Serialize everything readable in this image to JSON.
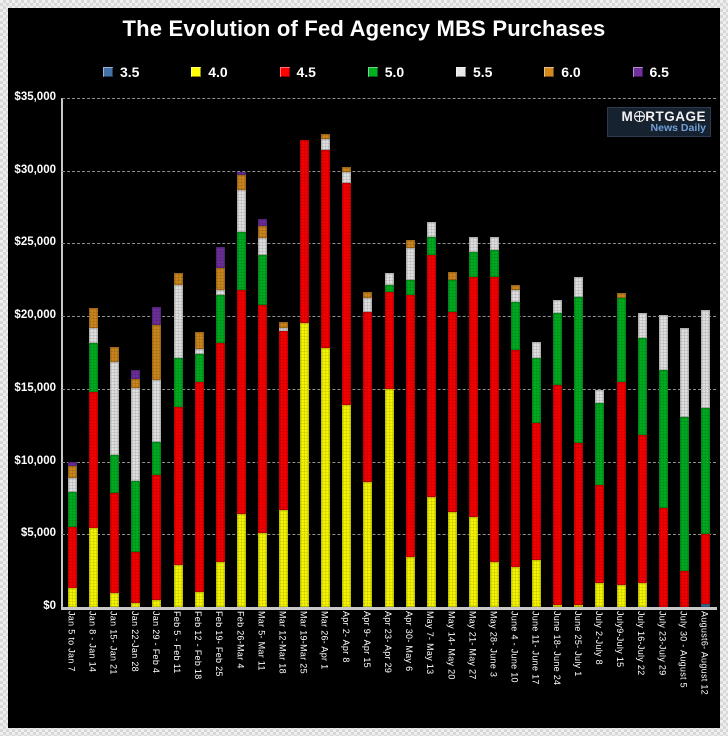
{
  "title": "The Evolution of Fed Agency MBS Purchases",
  "logo": {
    "name_left": "M",
    "name_right": "RTGAGE",
    "subtitle": "News Daily"
  },
  "axis": {
    "y_ticks": [
      "$35,000",
      "$30,000",
      "$25,000",
      "$20,000",
      "$15,000",
      "$10,000",
      "$5,000",
      "$0"
    ]
  },
  "chart_data": {
    "type": "bar",
    "stacked": true,
    "title": "The Evolution of Fed Agency MBS Purchases",
    "xlabel": "",
    "ylabel": "",
    "ylim": [
      0,
      35000
    ],
    "gridline_interval": 5000,
    "grid": true,
    "legend_position": "top",
    "background": "#000000",
    "categories": [
      "Jan 5 to Jan 7",
      "Jan 8 - Jan 14",
      "Jan 15- Jan 21",
      "Jan 22-Jan 28",
      "Jan 29 - Feb 4",
      "Feb 5 - Feb 11",
      "Feb 12 - Feb 18",
      "Feb 19- Feb 25",
      "Feb 26-Mar 4",
      "Mar 5- Mar 11",
      "Mar 12-Mar 18",
      "Mar 19-Mar 25",
      "Mar 26- Apr 1",
      "Apr 2- Apr 8",
      "Apr 9- Apr 15",
      "Apr 23- Apr 29",
      "Apr 30- May 6",
      "May 7- May 13",
      "May 14- May 20",
      "May 21- May 27",
      "May 28- June 3",
      "June 4 - June 10",
      "June 11- June 17",
      "June 18- June 24",
      "June 25- July 1",
      "July 2-July 8",
      "July9-July 15",
      "July 16-July 22",
      "July 23-July 29",
      "July 30 - August 5",
      "August6- August 12"
    ],
    "series": [
      {
        "name": "3.5",
        "color": "#4472A8",
        "values": [
          0,
          0,
          0,
          0,
          0,
          0,
          0,
          0,
          0,
          0,
          0,
          0,
          0,
          0,
          0,
          0,
          0,
          0,
          0,
          0,
          0,
          0,
          0,
          0,
          0,
          0,
          0,
          0,
          0,
          0,
          200
        ]
      },
      {
        "name": "4.0",
        "color": "#FFFF00",
        "values": [
          1300,
          5400,
          950,
          250,
          450,
          2900,
          1050,
          3100,
          6400,
          5100,
          6700,
          19500,
          17800,
          13900,
          8600,
          15000,
          3450,
          7550,
          6550,
          6200,
          3100,
          2750,
          3200,
          150,
          150,
          1650,
          1500,
          1650,
          0,
          0,
          0
        ]
      },
      {
        "name": "4.5",
        "color": "#FF0000",
        "values": [
          4200,
          9400,
          6900,
          3550,
          8650,
          10850,
          14400,
          15050,
          15400,
          15700,
          12300,
          12600,
          13600,
          15250,
          11700,
          6650,
          18000,
          16650,
          13750,
          16500,
          19600,
          14900,
          9450,
          15100,
          11150,
          6750,
          14000,
          10200,
          6800,
          2500,
          4800
        ]
      },
      {
        "name": "5.0",
        "color": "#00B121",
        "values": [
          2400,
          3350,
          2600,
          4900,
          2250,
          3350,
          1970,
          3300,
          4000,
          3400,
          0,
          0,
          0,
          0,
          0,
          500,
          1050,
          1250,
          2200,
          1700,
          1850,
          3300,
          4450,
          4950,
          10000,
          5650,
          5750,
          6650,
          9500,
          10600,
          8700
        ]
      },
      {
        "name": "5.5",
        "color": "#E8E8E8",
        "values": [
          1000,
          1030,
          6400,
          6330,
          4260,
          5040,
          340,
          350,
          2860,
          1200,
          200,
          0,
          760,
          750,
          960,
          800,
          2200,
          1050,
          0,
          1030,
          900,
          820,
          1100,
          900,
          1400,
          900,
          0,
          1700,
          3800,
          6100,
          6700
        ]
      },
      {
        "name": "6.0",
        "color": "#D28A1E",
        "values": [
          800,
          1380,
          1030,
          680,
          3780,
          810,
          1140,
          1490,
          1030,
          800,
          400,
          0,
          350,
          360,
          410,
          0,
          550,
          0,
          550,
          0,
          0,
          340,
          0,
          0,
          0,
          0,
          350,
          0,
          0,
          0,
          0
        ]
      },
      {
        "name": "6.5",
        "color": "#7030A0",
        "values": [
          250,
          0,
          0,
          560,
          1250,
          0,
          0,
          1470,
          230,
          500,
          0,
          0,
          0,
          0,
          0,
          0,
          0,
          0,
          0,
          0,
          0,
          0,
          0,
          0,
          0,
          0,
          0,
          0,
          0,
          0,
          0
        ]
      }
    ]
  }
}
